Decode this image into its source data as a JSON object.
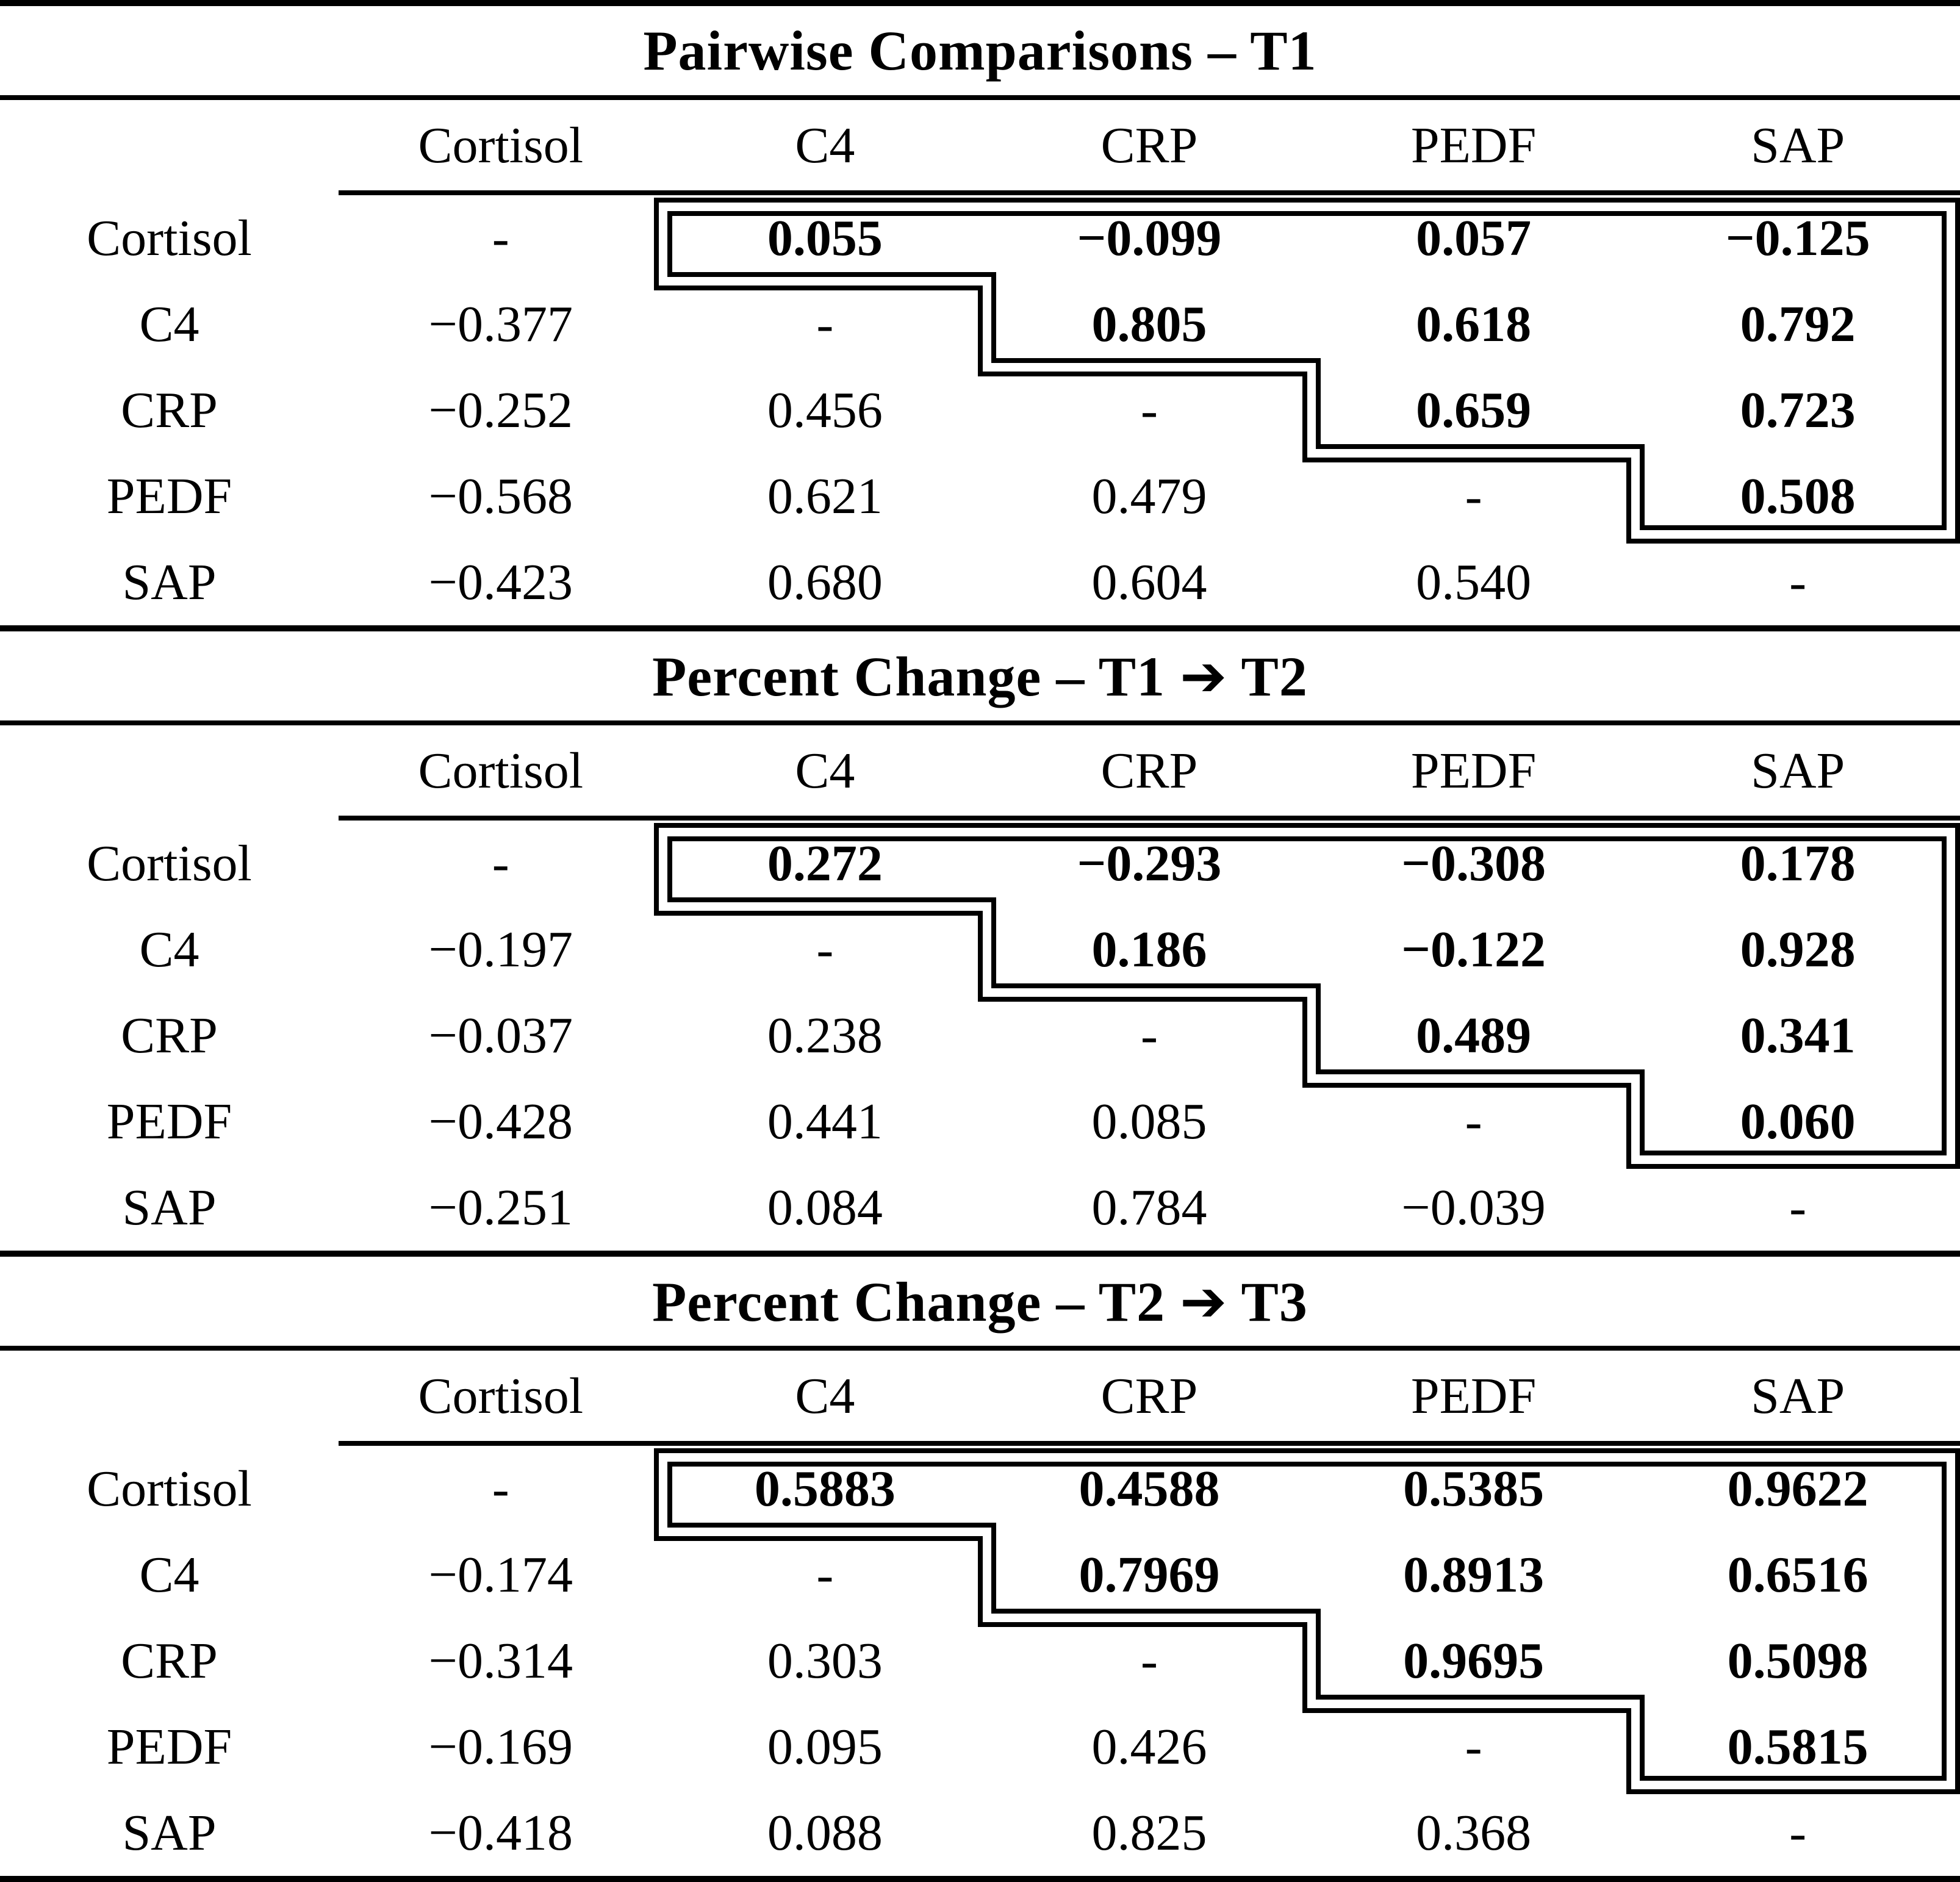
{
  "page": {
    "background": "#ffffff",
    "text_color": "#000000"
  },
  "tables": [
    {
      "id": "pairwise-t1",
      "title": "Pairwise Comparisons – T1",
      "col_headers": [
        "Cortisol",
        "C4",
        "CRP",
        "PEDF",
        "SAP"
      ],
      "row_labels": [
        "Cortisol",
        "C4",
        "CRP",
        "PEDF",
        "SAP"
      ],
      "rows": [
        [
          "-",
          "0.055",
          "−0.099",
          "0.057",
          "−0.125"
        ],
        [
          "−0.377",
          "-",
          "0.805",
          "0.618",
          "0.792"
        ],
        [
          "−0.252",
          "0.456",
          "-",
          "0.659",
          "0.723"
        ],
        [
          "−0.568",
          "0.621",
          "0.479",
          "-",
          "0.508"
        ],
        [
          "−0.423",
          "0.680",
          "0.604",
          "0.540",
          "-"
        ]
      ]
    },
    {
      "id": "percent-change-t1-t2",
      "title": "Percent Change – T1 ➔ T2",
      "col_headers": [
        "Cortisol",
        "C4",
        "CRP",
        "PEDF",
        "SAP"
      ],
      "row_labels": [
        "Cortisol",
        "C4",
        "CRP",
        "PEDF",
        "SAP"
      ],
      "rows": [
        [
          "-",
          "0.272",
          "−0.293",
          "−0.308",
          "0.178"
        ],
        [
          "−0.197",
          "-",
          "0.186",
          "−0.122",
          "0.928"
        ],
        [
          "−0.037",
          "0.238",
          "-",
          "0.489",
          "0.341"
        ],
        [
          "−0.428",
          "0.441",
          "0.085",
          "-",
          "0.060"
        ],
        [
          "−0.251",
          "0.084",
          "0.784",
          "−0.039",
          "-"
        ]
      ]
    },
    {
      "id": "percent-change-t2-t3",
      "title": "Percent Change – T2 ➔ T3",
      "col_headers": [
        "Cortisol",
        "C4",
        "CRP",
        "PEDF",
        "SAP"
      ],
      "row_labels": [
        "Cortisol",
        "C4",
        "CRP",
        "PEDF",
        "SAP"
      ],
      "rows": [
        [
          "-",
          "0.5883",
          "0.4588",
          "0.5385",
          "0.9622"
        ],
        [
          "−0.174",
          "-",
          "0.7969",
          "0.8913",
          "0.6516"
        ],
        [
          "−0.314",
          "0.303",
          "-",
          "0.9695",
          "0.5098"
        ],
        [
          "−0.169",
          "0.095",
          "0.426",
          "-",
          "0.5815"
        ],
        [
          "−0.418",
          "0.088",
          "0.825",
          "0.368",
          "-"
        ]
      ]
    }
  ]
}
